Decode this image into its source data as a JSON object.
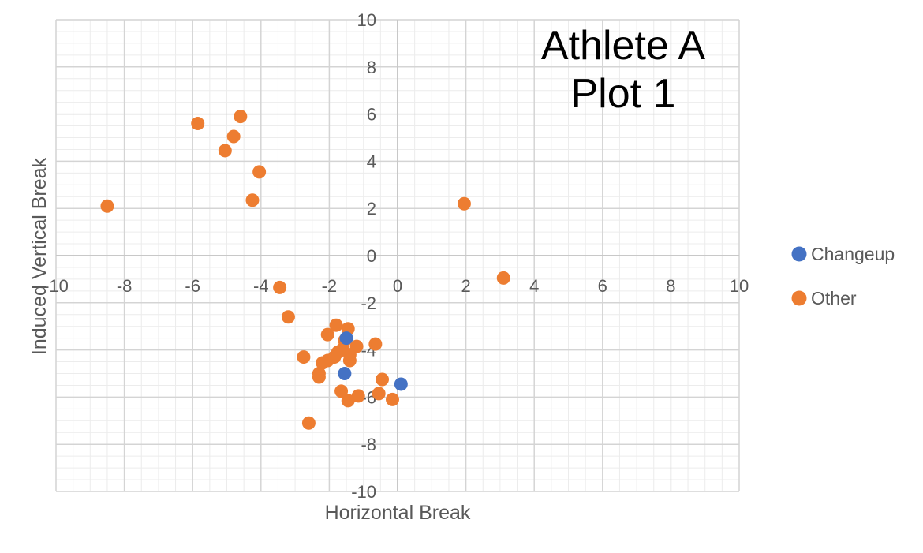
{
  "chart_data": {
    "type": "scatter",
    "title": [
      "Athlete A",
      "Plot 1"
    ],
    "xlabel": "Horizontal Break",
    "ylabel": "Induced Vertical Break",
    "xlim": [
      -10,
      10
    ],
    "ylim": [
      -10,
      10
    ],
    "major_step": 2,
    "minor_step": 0.5,
    "grid": true,
    "legend_position": "right",
    "tick_labels": [
      -10,
      -8,
      -6,
      -4,
      -2,
      0,
      2,
      4,
      6,
      8,
      10
    ],
    "series": [
      {
        "name": "Changeup",
        "color": "#4472c4",
        "points": [
          {
            "x": -1.5,
            "y": -3.5
          },
          {
            "x": -1.55,
            "y": -5.0
          },
          {
            "x": 0.1,
            "y": -5.45
          }
        ]
      },
      {
        "name": "Other",
        "color": "#ed7d31",
        "points": [
          {
            "x": -8.5,
            "y": 2.1
          },
          {
            "x": -5.85,
            "y": 5.6
          },
          {
            "x": -4.6,
            "y": 5.9
          },
          {
            "x": -4.8,
            "y": 5.05
          },
          {
            "x": -5.05,
            "y": 4.45
          },
          {
            "x": -4.05,
            "y": 3.55
          },
          {
            "x": -4.25,
            "y": 2.35
          },
          {
            "x": 1.95,
            "y": 2.2
          },
          {
            "x": 3.1,
            "y": -0.95
          },
          {
            "x": -3.45,
            "y": -1.35
          },
          {
            "x": -3.2,
            "y": -2.6
          },
          {
            "x": -1.8,
            "y": -2.95
          },
          {
            "x": -1.45,
            "y": -3.1
          },
          {
            "x": -2.05,
            "y": -3.35
          },
          {
            "x": -1.55,
            "y": -3.6
          },
          {
            "x": -0.65,
            "y": -3.75
          },
          {
            "x": -1.2,
            "y": -3.85
          },
          {
            "x": -1.6,
            "y": -3.95
          },
          {
            "x": -1.75,
            "y": -4.1
          },
          {
            "x": -1.85,
            "y": -4.3
          },
          {
            "x": -1.4,
            "y": -4.2
          },
          {
            "x": -2.75,
            "y": -4.3
          },
          {
            "x": -2.05,
            "y": -4.45
          },
          {
            "x": -2.2,
            "y": -4.55
          },
          {
            "x": -1.4,
            "y": -4.45
          },
          {
            "x": -2.3,
            "y": -5.0
          },
          {
            "x": -2.3,
            "y": -5.15
          },
          {
            "x": -0.45,
            "y": -5.25
          },
          {
            "x": -1.65,
            "y": -5.75
          },
          {
            "x": -1.15,
            "y": -5.95
          },
          {
            "x": -0.55,
            "y": -5.85
          },
          {
            "x": -1.45,
            "y": -6.15
          },
          {
            "x": -0.15,
            "y": -6.1
          },
          {
            "x": -2.6,
            "y": -7.1
          }
        ]
      }
    ]
  }
}
